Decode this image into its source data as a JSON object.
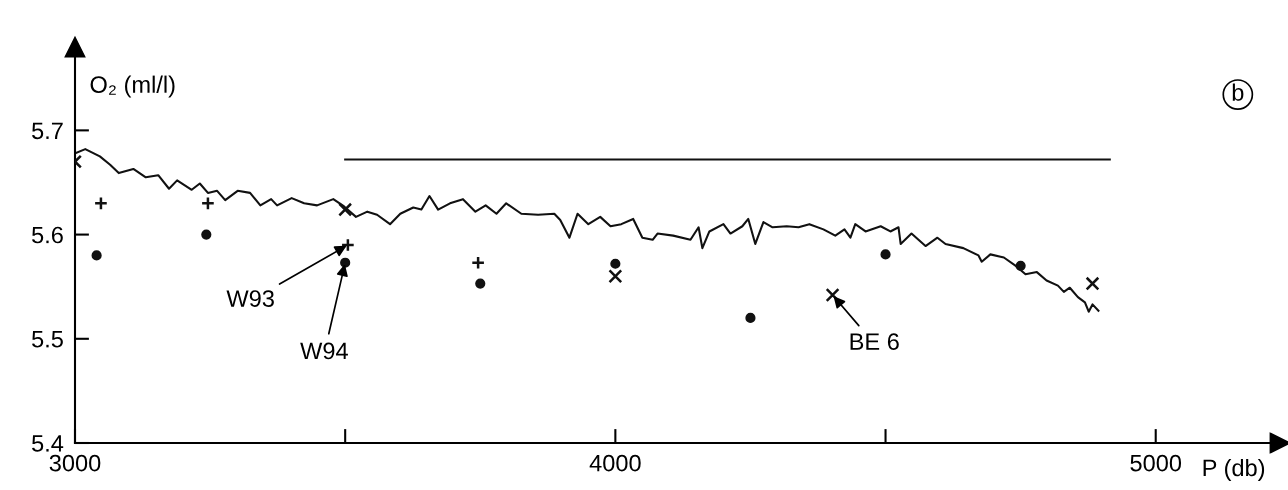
{
  "chart_data": {
    "type": "line",
    "xlabel": "P (db)",
    "ylabel": "O₂ (ml/l)",
    "xlim": [
      3000,
      5230
    ],
    "ylim": [
      5.4,
      5.78
    ],
    "xticks": [
      3000,
      {
        "value": 3500,
        "label": null
      },
      4000,
      {
        "value": 4500,
        "label": null
      },
      5000
    ],
    "yticks": [
      5.4,
      5.5,
      5.6,
      5.7
    ],
    "grid": false,
    "legend": false,
    "series": [
      {
        "color": "#111111",
        "marker": "none",
        "line_style": "solid",
        "x": [
          3000,
          3019,
          3046,
          3065,
          3081,
          3108,
          3131,
          3154,
          3174,
          3189,
          3216,
          3231,
          3246,
          3263,
          3278,
          3301,
          3324,
          3343,
          3363,
          3374,
          3401,
          3424,
          3448,
          3478,
          3498,
          3520,
          3541,
          3559,
          3583,
          3602,
          3626,
          3641,
          3656,
          3672,
          3694,
          3718,
          3741,
          3760,
          3780,
          3798,
          3826,
          3857,
          3887,
          3898,
          3915,
          3930,
          3950,
          3972,
          3991,
          4011,
          4033,
          4050,
          4069,
          4078,
          4107,
          4139,
          4154,
          4161,
          4174,
          4200,
          4213,
          4235,
          4246,
          4259,
          4274,
          4291,
          4317,
          4339,
          4359,
          4385,
          4407,
          4424,
          4435,
          4444,
          4463,
          4491,
          4509,
          4524,
          4528,
          4548,
          4574,
          4596,
          4611,
          4644,
          4672,
          4678,
          4694,
          4719,
          4741,
          4759,
          4780,
          4798,
          4819,
          4830,
          4841,
          4856,
          4869,
          4876,
          4883,
          4894
        ],
        "values": [
          5.678,
          5.682,
          5.675,
          5.667,
          5.659,
          5.663,
          5.655,
          5.657,
          5.644,
          5.652,
          5.643,
          5.649,
          5.64,
          5.642,
          5.633,
          5.642,
          5.64,
          5.628,
          5.634,
          5.628,
          5.635,
          5.63,
          5.628,
          5.634,
          5.627,
          5.617,
          5.622,
          5.619,
          5.61,
          5.62,
          5.626,
          5.624,
          5.637,
          5.624,
          5.63,
          5.634,
          5.622,
          5.628,
          5.62,
          5.63,
          5.62,
          5.619,
          5.62,
          5.614,
          5.597,
          5.62,
          5.61,
          5.617,
          5.608,
          5.61,
          5.615,
          5.597,
          5.595,
          5.601,
          5.599,
          5.595,
          5.607,
          5.587,
          5.603,
          5.61,
          5.601,
          5.608,
          5.615,
          5.591,
          5.612,
          5.607,
          5.608,
          5.607,
          5.61,
          5.605,
          5.599,
          5.605,
          5.597,
          5.61,
          5.603,
          5.608,
          5.603,
          5.607,
          5.591,
          5.601,
          5.589,
          5.597,
          5.591,
          5.587,
          5.58,
          5.574,
          5.581,
          5.578,
          5.57,
          5.562,
          5.564,
          5.556,
          5.551,
          5.545,
          5.549,
          5.54,
          5.535,
          5.526,
          5.533,
          5.527
        ]
      },
      {
        "color": "#111111",
        "marker": "none",
        "line_style": "solid",
        "x": [
          3500,
          4915
        ],
        "values": [
          5.672,
          5.672
        ]
      },
      {
        "type": "scatter",
        "color": "#111111",
        "marker": "circle",
        "x": [
          3040,
          3243,
          3500,
          3750,
          4000,
          4250,
          4500,
          4750
        ],
        "values": [
          5.58,
          5.6,
          5.573,
          5.553,
          5.572,
          5.52,
          5.581,
          5.57
        ]
      },
      {
        "type": "scatter",
        "color": "#111111",
        "marker": "plus",
        "x": [
          3048,
          3246,
          3505,
          3746
        ],
        "values": [
          5.63,
          5.63,
          5.59,
          5.573
        ]
      },
      {
        "type": "scatter",
        "color": "#111111",
        "marker": "cross",
        "x": [
          3000,
          3500,
          4000,
          4402,
          4883
        ],
        "values": [
          5.67,
          5.624,
          5.56,
          5.542,
          5.553
        ]
      }
    ],
    "annotations": [
      {
        "text": "W93",
        "x": 3505,
        "y": 5.59
      },
      {
        "text": "W94",
        "x": 3500,
        "y": 5.573
      },
      {
        "text": "BE 6",
        "x": 4402,
        "y": 5.542
      },
      "b"
    ]
  }
}
